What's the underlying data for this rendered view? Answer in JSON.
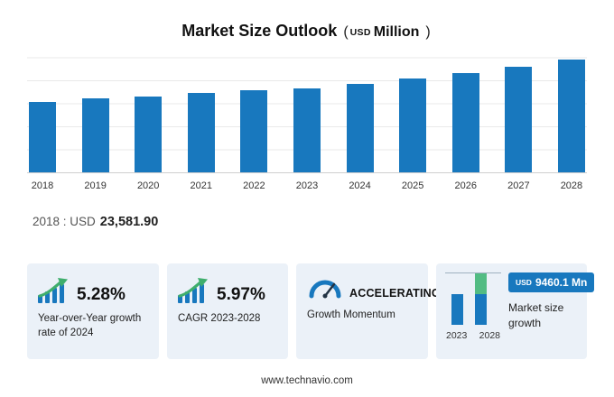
{
  "title": {
    "main": "Market Size Outlook",
    "paren_open": "(",
    "currency": "USD",
    "unit": "Million",
    "paren_close": ")"
  },
  "chart_data": {
    "type": "bar",
    "title": "Market Size Outlook (USD Million)",
    "categories": [
      "2018",
      "2019",
      "2020",
      "2021",
      "2022",
      "2023",
      "2024",
      "2025",
      "2026",
      "2027",
      "2028"
    ],
    "values": [
      23581.9,
      24650,
      25400,
      26500,
      27450,
      28122.4,
      29607.2,
      31200,
      33000,
      35100,
      37582.5
    ],
    "xlabel": "",
    "ylabel": "",
    "ylim": [
      0,
      38500
    ],
    "grid": true,
    "legend": false,
    "bar_color": "#1878be",
    "labeled_point": {
      "category": "2018",
      "label": "2018 : USD 23,581.90"
    }
  },
  "base_note": {
    "prefix": "2018 : USD",
    "value": "23,581.90"
  },
  "cards": [
    {
      "value": "5.28%",
      "label": "Year-over-Year growth rate of 2024"
    },
    {
      "value": "5.97%",
      "label": "CAGR 2023-2028"
    },
    {
      "value": "ACCELERATING",
      "label": "Growth Momentum"
    },
    {
      "badge_currency": "USD",
      "badge_value": "9460.1 Mn",
      "label": "Market size growth",
      "years": [
        "2023",
        "2028"
      ]
    }
  ],
  "footer": {
    "website": "www.technavio.com"
  },
  "colors": {
    "bar_blue": "#1878be",
    "accent_green": "#52bc83",
    "card_background": "#ebf1f8",
    "badge_background": "#1878be"
  }
}
